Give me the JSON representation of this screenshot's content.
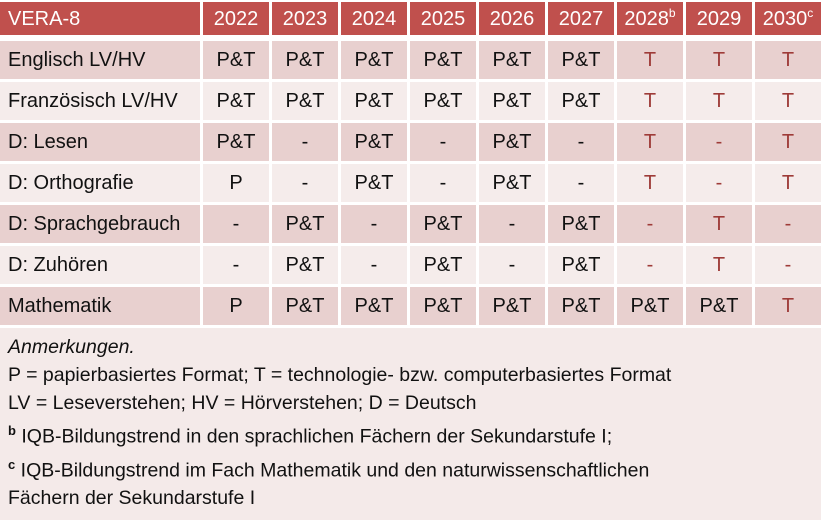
{
  "colors": {
    "header_bg": "#C0504D",
    "band_dark": "#E8D0CF",
    "band_light": "#F5ECEB",
    "notes_bg": "#F4EAE9",
    "highlight_text": "#9E3B38",
    "header_text": "#FFFFFF"
  },
  "table": {
    "title": "VERA-8",
    "years": [
      {
        "label": "2022",
        "sup": ""
      },
      {
        "label": "2023",
        "sup": ""
      },
      {
        "label": "2024",
        "sup": ""
      },
      {
        "label": "2025",
        "sup": ""
      },
      {
        "label": "2026",
        "sup": ""
      },
      {
        "label": "2027",
        "sup": ""
      },
      {
        "label": "2028",
        "sup": "b"
      },
      {
        "label": "2029",
        "sup": ""
      },
      {
        "label": "2030",
        "sup": "c"
      }
    ],
    "rows": [
      {
        "label": "Englisch LV/HV",
        "cells": [
          {
            "v": "P&T",
            "red": false
          },
          {
            "v": "P&T",
            "red": false
          },
          {
            "v": "P&T",
            "red": false
          },
          {
            "v": "P&T",
            "red": false
          },
          {
            "v": "P&T",
            "red": false
          },
          {
            "v": "P&T",
            "red": false
          },
          {
            "v": "T",
            "red": true
          },
          {
            "v": "T",
            "red": true
          },
          {
            "v": "T",
            "red": true
          }
        ]
      },
      {
        "label": "Französisch LV/HV",
        "cells": [
          {
            "v": "P&T",
            "red": false
          },
          {
            "v": "P&T",
            "red": false
          },
          {
            "v": "P&T",
            "red": false
          },
          {
            "v": "P&T",
            "red": false
          },
          {
            "v": "P&T",
            "red": false
          },
          {
            "v": "P&T",
            "red": false
          },
          {
            "v": "T",
            "red": true
          },
          {
            "v": "T",
            "red": true
          },
          {
            "v": "T",
            "red": true
          }
        ]
      },
      {
        "label": "D: Lesen",
        "cells": [
          {
            "v": "P&T",
            "red": false
          },
          {
            "v": "-",
            "red": false
          },
          {
            "v": "P&T",
            "red": false
          },
          {
            "v": "-",
            "red": false
          },
          {
            "v": "P&T",
            "red": false
          },
          {
            "v": "-",
            "red": false
          },
          {
            "v": "T",
            "red": true
          },
          {
            "v": "-",
            "red": true
          },
          {
            "v": "T",
            "red": true
          }
        ]
      },
      {
        "label": "D: Orthografie",
        "cells": [
          {
            "v": "P",
            "red": false
          },
          {
            "v": "-",
            "red": false
          },
          {
            "v": "P&T",
            "red": false
          },
          {
            "v": "-",
            "red": false
          },
          {
            "v": "P&T",
            "red": false
          },
          {
            "v": "-",
            "red": false
          },
          {
            "v": "T",
            "red": true
          },
          {
            "v": "-",
            "red": true
          },
          {
            "v": "T",
            "red": true
          }
        ]
      },
      {
        "label": "D: Sprachgebrauch",
        "cells": [
          {
            "v": "-",
            "red": false
          },
          {
            "v": "P&T",
            "red": false
          },
          {
            "v": "-",
            "red": false
          },
          {
            "v": "P&T",
            "red": false
          },
          {
            "v": "-",
            "red": false
          },
          {
            "v": "P&T",
            "red": false
          },
          {
            "v": "-",
            "red": true
          },
          {
            "v": "T",
            "red": true
          },
          {
            "v": "-",
            "red": true
          }
        ]
      },
      {
        "label": "D: Zuhören",
        "cells": [
          {
            "v": "-",
            "red": false
          },
          {
            "v": "P&T",
            "red": false
          },
          {
            "v": "-",
            "red": false
          },
          {
            "v": "P&T",
            "red": false
          },
          {
            "v": "-",
            "red": false
          },
          {
            "v": "P&T",
            "red": false
          },
          {
            "v": "-",
            "red": true
          },
          {
            "v": "T",
            "red": true
          },
          {
            "v": "-",
            "red": true
          }
        ]
      },
      {
        "label": "Mathematik",
        "cells": [
          {
            "v": "P",
            "red": false
          },
          {
            "v": "P&T",
            "red": false
          },
          {
            "v": "P&T",
            "red": false
          },
          {
            "v": "P&T",
            "red": false
          },
          {
            "v": "P&T",
            "red": false
          },
          {
            "v": "P&T",
            "red": false
          },
          {
            "v": "P&T",
            "red": false
          },
          {
            "v": "P&T",
            "red": false
          },
          {
            "v": "T",
            "red": true
          }
        ]
      }
    ]
  },
  "notes": {
    "title": "Anmerkungen.",
    "formats": "P = papierbasiertes Format; T = technologie- bzw. computerbasiertes Format",
    "abbreviations": "LV = Leseverstehen; HV = Hörverstehen; D = Deutsch",
    "note_b": {
      "sup": "b",
      "text": "IQB-Bildungstrend in den sprachlichen Fächern der Sekundarstufe I;"
    },
    "note_c": {
      "sup": "c",
      "line1": "IQB-Bildungstrend im Fach Mathematik und den naturwissenschaftlichen",
      "line2": "Fächern der Sekundarstufe I"
    }
  }
}
